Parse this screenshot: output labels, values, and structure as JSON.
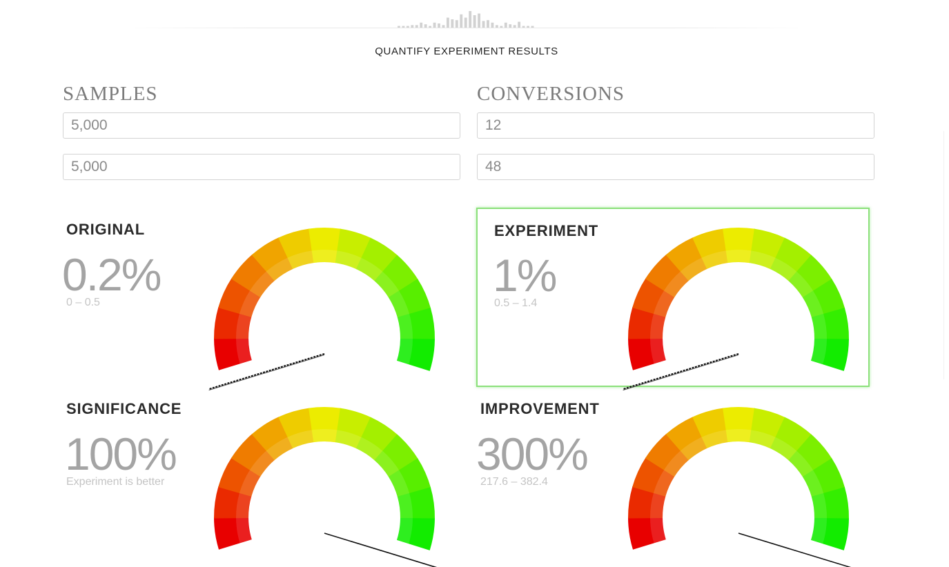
{
  "header": {
    "title": "QUANTIFY EXPERIMENT RESULTS",
    "sparkline": [
      2,
      2,
      2,
      3,
      3,
      6,
      4,
      2,
      6,
      5,
      3,
      12,
      10,
      9,
      16,
      12,
      20,
      15,
      17,
      8,
      9,
      6,
      3,
      2,
      6,
      4,
      3,
      7,
      2,
      2,
      2
    ]
  },
  "samples": {
    "heading": "SAMPLES",
    "original_value": "5,000",
    "experiment_value": "5,000"
  },
  "conversions": {
    "heading": "CONVERSIONS",
    "original_value": "12",
    "experiment_value": "48"
  },
  "gauge_colors": [
    "#e80000",
    "#ea2a00",
    "#ed5300",
    "#ef7c00",
    "#f0a400",
    "#eecc00",
    "#ecec00",
    "#c8ee00",
    "#a4ef00",
    "#7cef00",
    "#58ee00",
    "#34ee00",
    "#12ec00"
  ],
  "original": {
    "title": "ORIGINAL",
    "value": "0.2%",
    "range": "0 – 0.5",
    "needle_fraction": 0.0,
    "needle_style": "dashed"
  },
  "experiment": {
    "title": "EXPERIMENT",
    "value": "1%",
    "range": "0.5 – 1.4",
    "needle_fraction": 0.0,
    "needle_style": "dashed",
    "accent_color": "#8be07a"
  },
  "significance": {
    "title": "SIGNIFICANCE",
    "value": "100%",
    "subtitle": "Experiment is better",
    "needle_fraction": 1.0,
    "needle_style": "solid"
  },
  "improvement": {
    "title": "IMPROVEMENT",
    "value": "300%",
    "range": "217.6 – 382.4",
    "needle_fraction": 1.0,
    "needle_style": "solid"
  }
}
